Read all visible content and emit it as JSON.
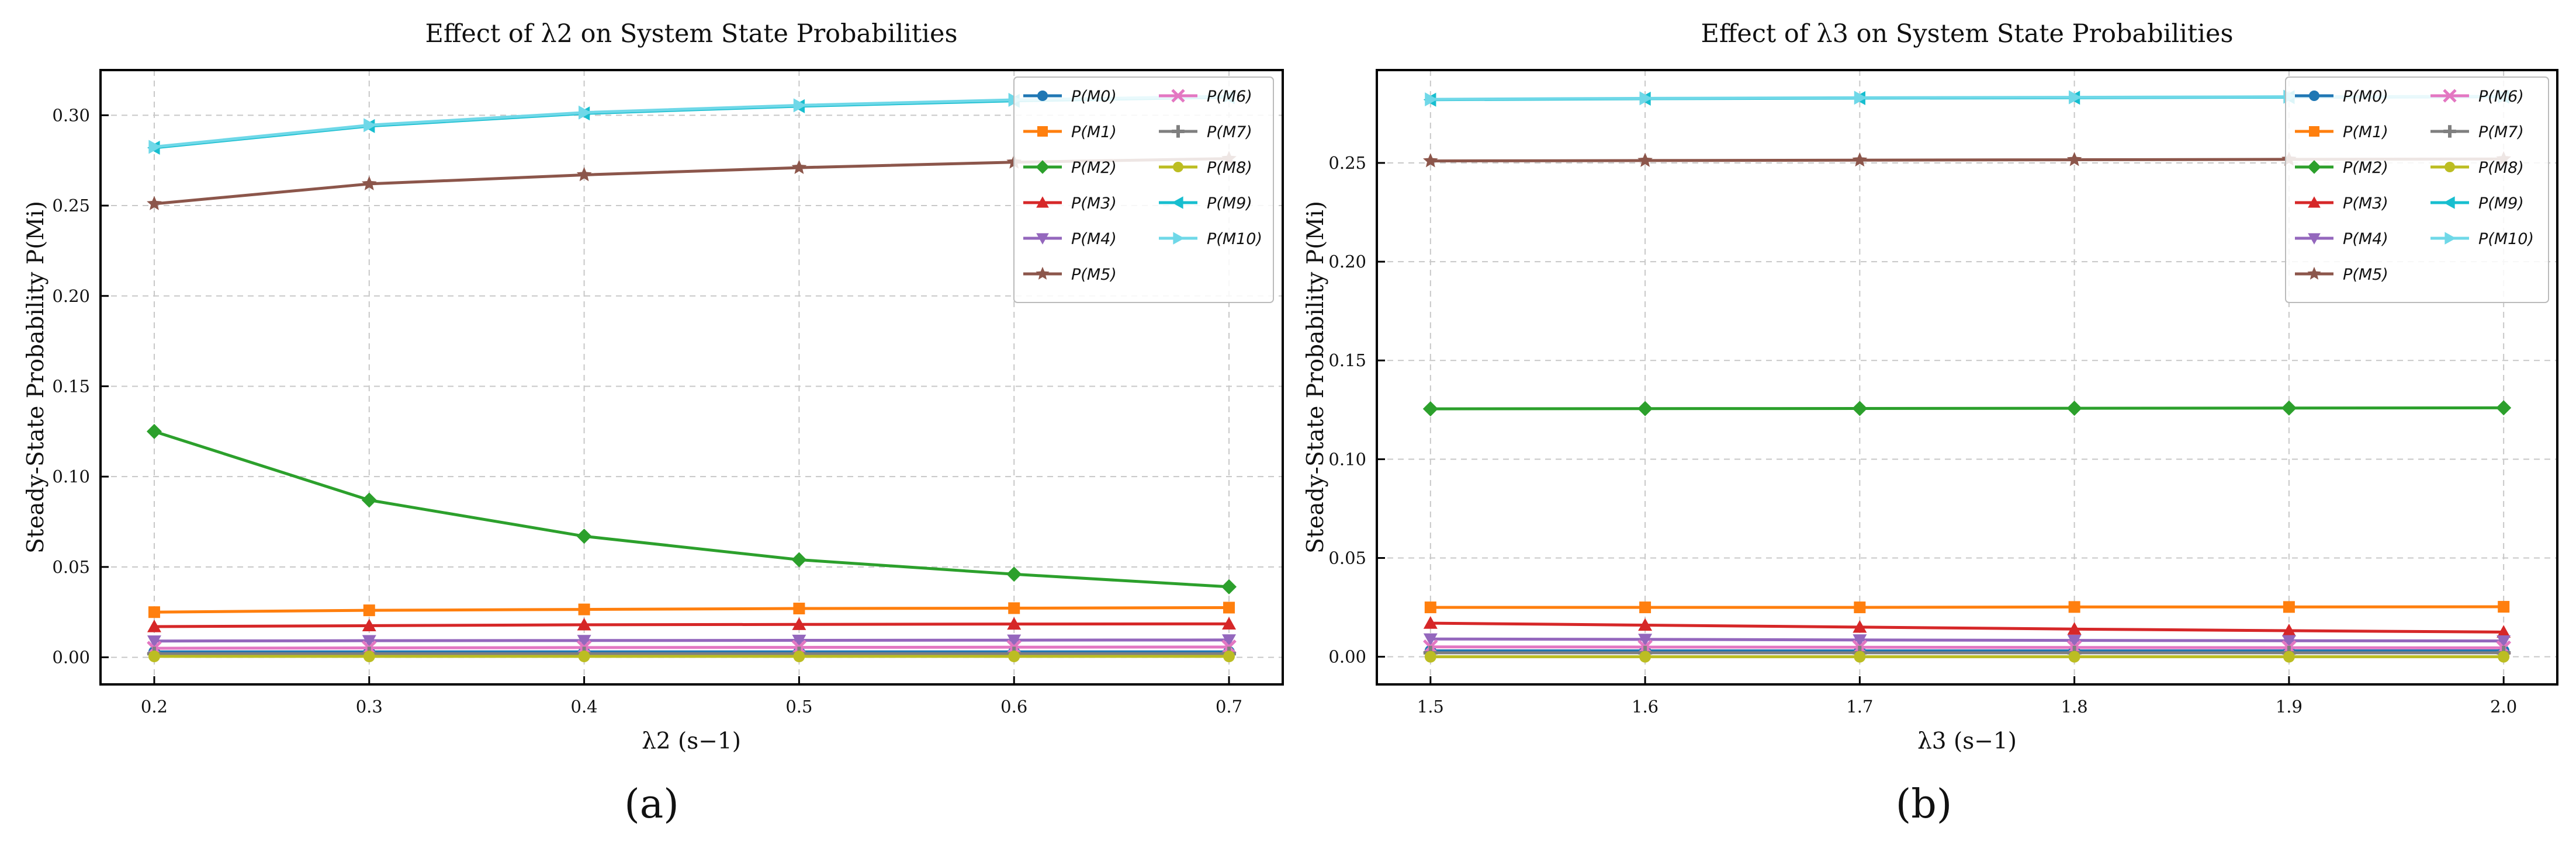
{
  "chart_data": [
    {
      "type": "line",
      "panel_label": "(a)",
      "title": "Effect of λ2 on System State Probabilities",
      "xlabel": "λ2 (s−1)",
      "ylabel": "Steady-State Probability P(Mi)",
      "x": [
        0.2,
        0.3,
        0.4,
        0.5,
        0.6,
        0.7
      ],
      "xlim": [
        0.175,
        0.725
      ],
      "ylim": [
        -0.015,
        0.325
      ],
      "xticks": [
        "0.2",
        "0.3",
        "0.4",
        "0.5",
        "0.6",
        "0.7"
      ],
      "yticks": [
        "0.00",
        "0.05",
        "0.10",
        "0.15",
        "0.20",
        "0.25",
        "0.30"
      ],
      "grid": true,
      "legend_position": "top-right",
      "series": [
        {
          "name": "P(M0)",
          "color": "#1f77b4",
          "marker": "circle",
          "values": [
            0.003,
            0.003,
            0.003,
            0.003,
            0.003,
            0.003
          ]
        },
        {
          "name": "P(M1)",
          "color": "#ff7f0e",
          "marker": "square",
          "values": [
            0.025,
            0.026,
            0.0265,
            0.027,
            0.0272,
            0.0275
          ]
        },
        {
          "name": "P(M2)",
          "color": "#2ca02c",
          "marker": "diamond",
          "values": [
            0.125,
            0.087,
            0.067,
            0.054,
            0.046,
            0.039
          ]
        },
        {
          "name": "P(M3)",
          "color": "#d62728",
          "marker": "triangle-up",
          "values": [
            0.017,
            0.0175,
            0.018,
            0.0182,
            0.0184,
            0.0185
          ]
        },
        {
          "name": "P(M4)",
          "color": "#9467bd",
          "marker": "triangle-down",
          "values": [
            0.009,
            0.0092,
            0.0093,
            0.0094,
            0.0095,
            0.0096
          ]
        },
        {
          "name": "P(M5)",
          "color": "#8c564b",
          "marker": "star",
          "values": [
            0.251,
            0.262,
            0.267,
            0.271,
            0.274,
            0.276
          ]
        },
        {
          "name": "P(M6)",
          "color": "#e377c2",
          "marker": "x",
          "values": [
            0.005,
            0.0052,
            0.0054,
            0.0055,
            0.0056,
            0.0057
          ]
        },
        {
          "name": "P(M7)",
          "color": "#7f7f7f",
          "marker": "plus",
          "values": [
            0.002,
            0.002,
            0.002,
            0.002,
            0.002,
            0.002
          ]
        },
        {
          "name": "P(M8)",
          "color": "#bcbd22",
          "marker": "octagon",
          "values": [
            0.0005,
            0.0005,
            0.0005,
            0.0005,
            0.0005,
            0.0005
          ]
        },
        {
          "name": "P(M9)",
          "color": "#17becf",
          "marker": "triangle-left",
          "values": [
            0.282,
            0.294,
            0.301,
            0.305,
            0.308,
            0.31
          ]
        },
        {
          "name": "P(M10)",
          "color": "#6fd8e8",
          "marker": "triangle-right",
          "values": [
            0.2825,
            0.2945,
            0.3015,
            0.3055,
            0.3085,
            0.3105
          ]
        }
      ]
    },
    {
      "type": "line",
      "panel_label": "(b)",
      "title": "Effect of λ3 on System State Probabilities",
      "xlabel": "λ3 (s−1)",
      "ylabel": "Steady-State Probability P(Mi)",
      "x": [
        1.5,
        1.6,
        1.7,
        1.8,
        1.9,
        2.0
      ],
      "xlim": [
        1.475,
        2.025
      ],
      "ylim": [
        -0.014,
        0.297
      ],
      "xticks": [
        "1.5",
        "1.6",
        "1.7",
        "1.8",
        "1.9",
        "2.0"
      ],
      "yticks": [
        "0.00",
        "0.05",
        "0.10",
        "0.15",
        "0.20",
        "0.25"
      ],
      "grid": true,
      "legend_position": "top-right",
      "series": [
        {
          "name": "P(M0)",
          "color": "#1f77b4",
          "marker": "circle",
          "values": [
            0.003,
            0.003,
            0.003,
            0.003,
            0.003,
            0.003
          ]
        },
        {
          "name": "P(M1)",
          "color": "#ff7f0e",
          "marker": "square",
          "values": [
            0.025,
            0.025,
            0.025,
            0.0252,
            0.0252,
            0.0253
          ]
        },
        {
          "name": "P(M2)",
          "color": "#2ca02c",
          "marker": "diamond",
          "values": [
            0.1255,
            0.1256,
            0.1257,
            0.1258,
            0.1259,
            0.126
          ]
        },
        {
          "name": "P(M3)",
          "color": "#d62728",
          "marker": "triangle-up",
          "values": [
            0.017,
            0.016,
            0.015,
            0.014,
            0.0132,
            0.0125
          ]
        },
        {
          "name": "P(M4)",
          "color": "#9467bd",
          "marker": "triangle-down",
          "values": [
            0.009,
            0.0088,
            0.0085,
            0.0083,
            0.0081,
            0.008
          ]
        },
        {
          "name": "P(M5)",
          "color": "#8c564b",
          "marker": "star",
          "values": [
            0.251,
            0.2512,
            0.2514,
            0.2516,
            0.2518,
            0.252
          ]
        },
        {
          "name": "P(M6)",
          "color": "#e377c2",
          "marker": "x",
          "values": [
            0.005,
            0.0049,
            0.0048,
            0.0047,
            0.0046,
            0.0045
          ]
        },
        {
          "name": "P(M7)",
          "color": "#7f7f7f",
          "marker": "plus",
          "values": [
            0.002,
            0.002,
            0.002,
            0.002,
            0.002,
            0.002
          ]
        },
        {
          "name": "P(M8)",
          "color": "#bcbd22",
          "marker": "octagon",
          "values": [
            0.0,
            0.0,
            0.0,
            0.0,
            0.0,
            0.0
          ]
        },
        {
          "name": "P(M9)",
          "color": "#17becf",
          "marker": "triangle-left",
          "values": [
            0.282,
            0.2825,
            0.2828,
            0.283,
            0.2833,
            0.2835
          ]
        },
        {
          "name": "P(M10)",
          "color": "#6fd8e8",
          "marker": "triangle-right",
          "values": [
            0.2822,
            0.2827,
            0.283,
            0.2832,
            0.2835,
            0.2837
          ]
        }
      ]
    }
  ]
}
